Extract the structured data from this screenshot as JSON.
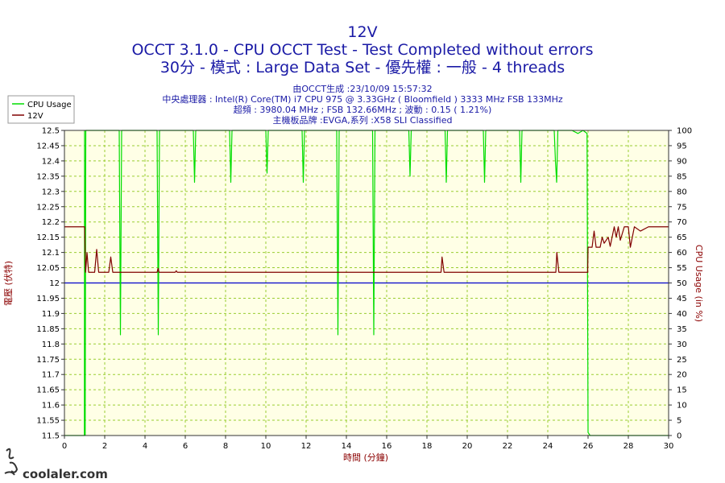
{
  "chart_data": {
    "type": "line",
    "title": "12V",
    "subtitle1": "OCCT 3.1.0 - CPU OCCT Test - Test Completed without errors",
    "subtitle2": "30分 - 模式 : Large Data Set - 優先權 : 一般 - 4 threads",
    "info_lines": [
      "由OCCT生成 :23/10/09 15:57:32",
      "中央處理器 : Intel(R) Core(TM) i7 CPU 975 @ 3.33GHz ( Bloomfield ) 3333 MHz FSB 133MHz",
      "超頻 : 3980.04 MHz ; FSB 132.66MHz ; 波動 : 0.15 ( 1.21%)",
      "主機板品牌 :EVGA,系列 :X58 SLI Classified"
    ],
    "xlabel": "時間 (分鐘)",
    "ylabel": "電壓 (伏特)",
    "y2label": "CPU Usage (in %)",
    "xlim": [
      0,
      30
    ],
    "ylim": [
      11.5,
      12.5
    ],
    "y2lim": [
      0,
      100
    ],
    "x_ticks": [
      "0",
      "2",
      "4",
      "6",
      "8",
      "10",
      "12",
      "14",
      "16",
      "18",
      "20",
      "22",
      "24",
      "26",
      "28",
      "30"
    ],
    "y_ticks": [
      "12.5",
      "12.45",
      "12.4",
      "12.35",
      "12.3",
      "12.25",
      "12.2",
      "12.15",
      "12.1",
      "12.05",
      "12",
      "11.95",
      "11.9",
      "11.85",
      "11.8",
      "11.75",
      "11.7",
      "11.65",
      "11.6",
      "11.55",
      "11.5"
    ],
    "y2_ticks": [
      "100",
      "95",
      "90",
      "85",
      "80",
      "75",
      "70",
      "65",
      "60",
      "55",
      "50",
      "45",
      "40",
      "35",
      "30",
      "25",
      "20",
      "15",
      "10",
      "5",
      "0"
    ],
    "grid": true,
    "legend_position": "top-left",
    "reference_line": {
      "y": 12.0,
      "color": "#0000cc"
    },
    "colors": {
      "background": "#ffffe6",
      "grid": "#9acd32",
      "cpu": "#00dd00",
      "v12": "#800000",
      "title": "#1a1aa6"
    },
    "series": [
      {
        "name": "CPU Usage",
        "axis": "right",
        "color": "#00dd00",
        "points": [
          [
            0,
            0
          ],
          [
            0.99,
            0
          ],
          [
            1.0,
            100
          ],
          [
            1.03,
            0
          ],
          [
            1.06,
            100
          ],
          [
            2.72,
            100
          ],
          [
            2.78,
            33
          ],
          [
            2.84,
            100
          ],
          [
            4.6,
            100
          ],
          [
            4.66,
            33
          ],
          [
            4.72,
            100
          ],
          [
            6.4,
            100
          ],
          [
            6.46,
            83
          ],
          [
            6.52,
            100
          ],
          [
            8.2,
            100
          ],
          [
            8.26,
            83
          ],
          [
            8.32,
            100
          ],
          [
            10.0,
            100
          ],
          [
            10.06,
            86
          ],
          [
            10.12,
            100
          ],
          [
            11.8,
            100
          ],
          [
            11.86,
            83
          ],
          [
            11.92,
            100
          ],
          [
            13.52,
            100
          ],
          [
            13.58,
            33
          ],
          [
            13.64,
            100
          ],
          [
            15.3,
            100
          ],
          [
            15.36,
            33
          ],
          [
            15.42,
            100
          ],
          [
            17.1,
            100
          ],
          [
            17.16,
            85
          ],
          [
            17.22,
            100
          ],
          [
            18.9,
            100
          ],
          [
            18.96,
            83
          ],
          [
            19.02,
            100
          ],
          [
            20.8,
            100
          ],
          [
            20.86,
            83
          ],
          [
            20.92,
            100
          ],
          [
            22.6,
            100
          ],
          [
            22.66,
            83
          ],
          [
            22.72,
            100
          ],
          [
            24.32,
            100
          ],
          [
            24.38,
            90
          ],
          [
            24.44,
            83
          ],
          [
            24.5,
            100
          ],
          [
            25.2,
            100
          ],
          [
            25.5,
            99
          ],
          [
            25.75,
            100
          ],
          [
            25.95,
            99
          ],
          [
            26.0,
            1
          ],
          [
            26.1,
            0
          ],
          [
            30,
            0
          ]
        ]
      },
      {
        "name": "12V",
        "axis": "left",
        "color": "#800000",
        "points": [
          [
            0,
            12.184
          ],
          [
            1.0,
            12.184
          ],
          [
            1.05,
            12.035
          ],
          [
            1.12,
            12.1
          ],
          [
            1.2,
            12.035
          ],
          [
            1.5,
            12.035
          ],
          [
            1.6,
            12.11
          ],
          [
            1.7,
            12.035
          ],
          [
            2.2,
            12.035
          ],
          [
            2.3,
            12.085
          ],
          [
            2.4,
            12.035
          ],
          [
            4.6,
            12.035
          ],
          [
            4.65,
            12.048
          ],
          [
            4.7,
            12.035
          ],
          [
            5.5,
            12.035
          ],
          [
            5.55,
            12.04
          ],
          [
            5.6,
            12.035
          ],
          [
            18.7,
            12.035
          ],
          [
            18.75,
            12.085
          ],
          [
            18.85,
            12.035
          ],
          [
            24.4,
            12.035
          ],
          [
            24.45,
            12.1
          ],
          [
            24.55,
            12.035
          ],
          [
            25.98,
            12.035
          ],
          [
            26.0,
            12.117
          ],
          [
            26.2,
            12.117
          ],
          [
            26.3,
            12.17
          ],
          [
            26.4,
            12.117
          ],
          [
            26.6,
            12.117
          ],
          [
            26.7,
            12.15
          ],
          [
            26.8,
            12.13
          ],
          [
            27.0,
            12.15
          ],
          [
            27.1,
            12.12
          ],
          [
            27.3,
            12.184
          ],
          [
            27.4,
            12.15
          ],
          [
            27.5,
            12.184
          ],
          [
            27.6,
            12.14
          ],
          [
            27.8,
            12.184
          ],
          [
            28.0,
            12.184
          ],
          [
            28.1,
            12.117
          ],
          [
            28.3,
            12.184
          ],
          [
            28.6,
            12.17
          ],
          [
            29.0,
            12.184
          ],
          [
            29.2,
            12.184
          ],
          [
            29.4,
            12.184
          ],
          [
            30,
            12.184
          ]
        ]
      }
    ]
  },
  "watermark": "coolaler.com"
}
